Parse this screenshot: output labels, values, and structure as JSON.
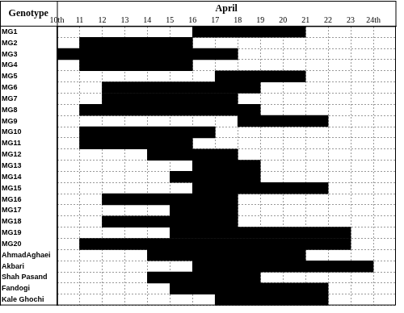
{
  "chart_data": {
    "type": "bar",
    "orientation": "horizontal",
    "title": "April",
    "ylabel": "Genotype",
    "categories": [
      "MG1",
      "MG2",
      "MG3",
      "MG4",
      "MG5",
      "MG6",
      "MG7",
      "MG8",
      "MG9",
      "MG10",
      "MG11",
      "MG12",
      "MG13",
      "MG14",
      "MG15",
      "MG16",
      "MG17",
      "MG18",
      "MG19",
      "MG20",
      "AhmadAghaei",
      "Akbari",
      "Shah Pasand",
      "Fandogi",
      "Kale Ghochi"
    ],
    "values": [
      [
        16,
        21
      ],
      [
        11,
        16
      ],
      [
        10,
        18
      ],
      [
        11,
        16
      ],
      [
        17,
        21
      ],
      [
        12,
        19
      ],
      [
        12,
        18
      ],
      [
        11,
        19
      ],
      [
        18,
        22
      ],
      [
        11,
        17
      ],
      [
        11,
        16
      ],
      [
        14,
        18
      ],
      [
        16,
        19
      ],
      [
        15,
        19
      ],
      [
        16,
        22
      ],
      [
        12,
        18
      ],
      [
        15,
        18
      ],
      [
        12,
        18
      ],
      [
        15,
        23
      ],
      [
        11,
        23
      ],
      [
        14,
        21
      ],
      [
        16,
        24
      ],
      [
        14,
        19
      ],
      [
        15,
        22
      ],
      [
        17,
        22
      ]
    ],
    "color": "#000000",
    "xlim": [
      10,
      25
    ],
    "xticks": [
      {
        "value": 10,
        "label": "10th"
      },
      11,
      12,
      13,
      14,
      15,
      16,
      17,
      18,
      19,
      20,
      21,
      22,
      23,
      {
        "value": 24,
        "label": "24th"
      }
    ],
    "grid": true
  }
}
